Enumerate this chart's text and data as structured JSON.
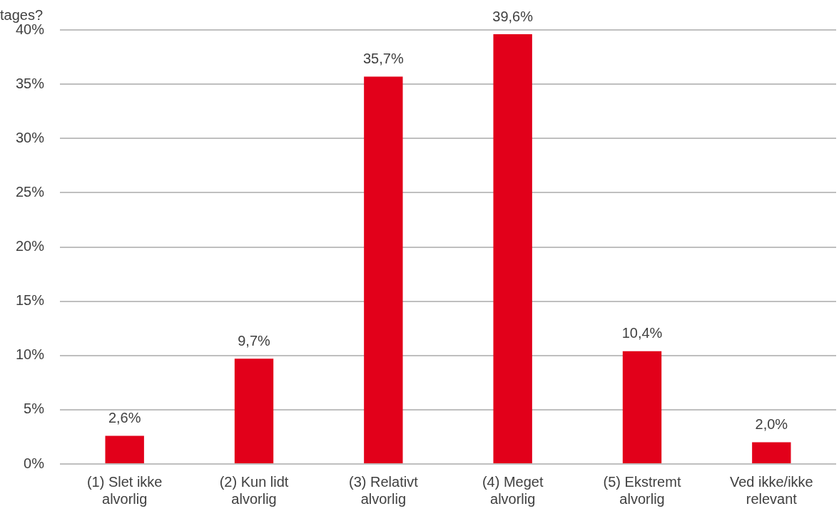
{
  "chart_data": {
    "type": "bar",
    "title": "tages?",
    "categories": [
      "(1) Slet ikke alvorlig",
      "(2) Kun lidt alvorlig",
      "(3) Relativt alvorlig",
      "(4) Meget alvorlig",
      "(5) Ekstremt alvorlig",
      "Ved ikke/ikke relevant"
    ],
    "values": [
      2.6,
      9.7,
      35.7,
      39.6,
      10.4,
      2.0
    ],
    "value_labels": [
      "2,6%",
      "9,7%",
      "35,7%",
      "39,6%",
      "10,4%",
      "2,0%"
    ],
    "color": "#e2001a",
    "ylim": [
      0,
      40
    ],
    "yticks": [
      {
        "value": 0,
        "label": "0%"
      },
      {
        "value": 5,
        "label": "5%"
      },
      {
        "value": 10,
        "label": "10%"
      },
      {
        "value": 15,
        "label": "15%"
      },
      {
        "value": 20,
        "label": "20%"
      },
      {
        "value": 25,
        "label": "25%"
      },
      {
        "value": 30,
        "label": "30%"
      },
      {
        "value": 35,
        "label": "35%"
      },
      {
        "value": 40,
        "label": "40%"
      }
    ],
    "grid": "y",
    "legend": false
  }
}
